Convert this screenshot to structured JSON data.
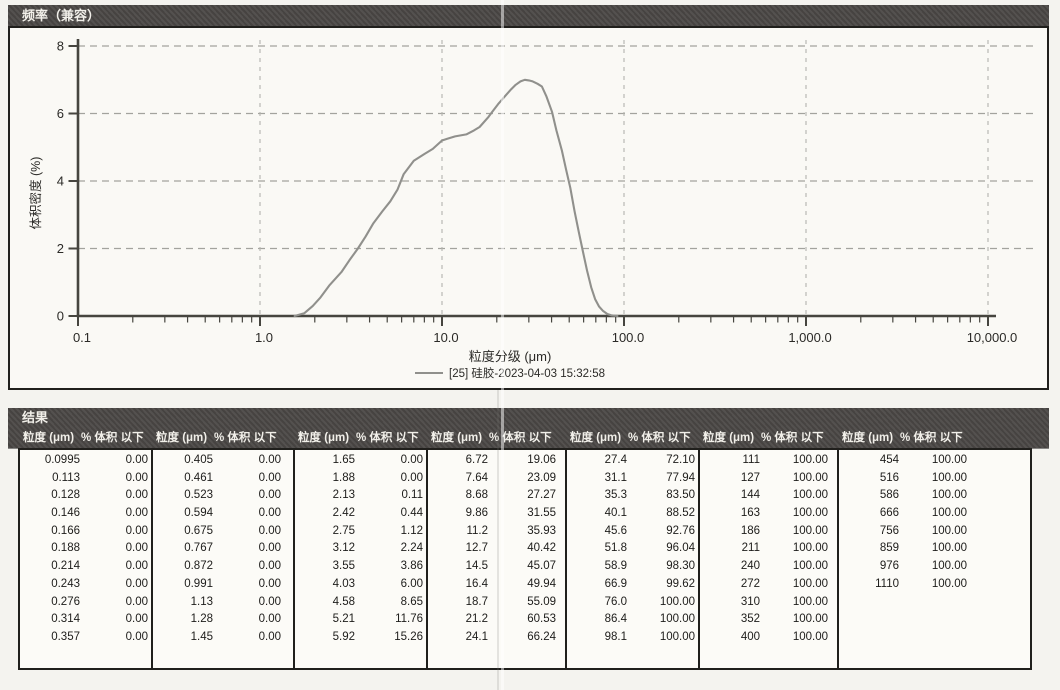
{
  "chart_panel": {
    "title": "频率（兼容）"
  },
  "chart_data": {
    "type": "line",
    "title": "频率（兼容）",
    "xlabel": "粒度分级 (μm)",
    "ylabel": "体积密度 (%)",
    "x_scale": "log",
    "xlim": [
      0.1,
      10000
    ],
    "ylim": [
      0,
      8
    ],
    "x_ticks": [
      "0.1",
      "1.0",
      "10.0",
      "100.0",
      "1,000.0",
      "10,000.0"
    ],
    "y_ticks": [
      "0",
      "2",
      "4",
      "6",
      "8"
    ],
    "grid": true,
    "legend_position": "bottom",
    "series": [
      {
        "name": "[25] 硅胶-2023-04-03 15:32:58",
        "color": "#90908c",
        "x": [
          1.55,
          1.75,
          1.95,
          2.15,
          2.4,
          2.8,
          3.1,
          3.45,
          3.8,
          4.2,
          4.7,
          5.2,
          5.7,
          6.15,
          7.0,
          8.0,
          8.9,
          10.0,
          10.7,
          11.8,
          13.6,
          15.0,
          16.1,
          18.0,
          18.9,
          20.5,
          22.5,
          24.0,
          25.4,
          27.0,
          28.5,
          30.0,
          31.5,
          33.5,
          35.4,
          37.5,
          40.2,
          42.5,
          45.6,
          48.0,
          50.7,
          53.5,
          56.4,
          59.5,
          62.6,
          66.0,
          69.4,
          73.0,
          76.7,
          81.0,
          85.0,
          92.0
        ],
        "y": [
          0,
          0.08,
          0.3,
          0.55,
          0.9,
          1.3,
          1.65,
          2.0,
          2.35,
          2.75,
          3.1,
          3.4,
          3.75,
          4.2,
          4.6,
          4.8,
          4.95,
          5.2,
          5.25,
          5.32,
          5.38,
          5.5,
          5.6,
          5.9,
          6.05,
          6.3,
          6.55,
          6.72,
          6.85,
          6.95,
          7.0,
          6.98,
          6.95,
          6.88,
          6.8,
          6.5,
          6.05,
          5.5,
          4.9,
          4.35,
          3.8,
          3.1,
          2.5,
          1.9,
          1.35,
          0.85,
          0.5,
          0.28,
          0.15,
          0.06,
          0.02,
          0
        ]
      }
    ]
  },
  "results_panel": {
    "title": "结果",
    "column_headers": {
      "size": "粒度 (μm)",
      "cumulative": "% 体积 以下"
    },
    "groups": [
      [
        [
          "0.0995",
          "0.00"
        ],
        [
          "0.113",
          "0.00"
        ],
        [
          "0.128",
          "0.00"
        ],
        [
          "0.146",
          "0.00"
        ],
        [
          "0.166",
          "0.00"
        ],
        [
          "0.188",
          "0.00"
        ],
        [
          "0.214",
          "0.00"
        ],
        [
          "0.243",
          "0.00"
        ],
        [
          "0.276",
          "0.00"
        ],
        [
          "0.314",
          "0.00"
        ],
        [
          "0.357",
          "0.00"
        ]
      ],
      [
        [
          "0.405",
          "0.00"
        ],
        [
          "0.461",
          "0.00"
        ],
        [
          "0.523",
          "0.00"
        ],
        [
          "0.594",
          "0.00"
        ],
        [
          "0.675",
          "0.00"
        ],
        [
          "0.767",
          "0.00"
        ],
        [
          "0.872",
          "0.00"
        ],
        [
          "0.991",
          "0.00"
        ],
        [
          "1.13",
          "0.00"
        ],
        [
          "1.28",
          "0.00"
        ],
        [
          "1.45",
          "0.00"
        ]
      ],
      [
        [
          "1.65",
          "0.00"
        ],
        [
          "1.88",
          "0.00"
        ],
        [
          "2.13",
          "0.11"
        ],
        [
          "2.42",
          "0.44"
        ],
        [
          "2.75",
          "1.12"
        ],
        [
          "3.12",
          "2.24"
        ],
        [
          "3.55",
          "3.86"
        ],
        [
          "4.03",
          "6.00"
        ],
        [
          "4.58",
          "8.65"
        ],
        [
          "5.21",
          "11.76"
        ],
        [
          "5.92",
          "15.26"
        ]
      ],
      [
        [
          "6.72",
          "19.06"
        ],
        [
          "7.64",
          "23.09"
        ],
        [
          "8.68",
          "27.27"
        ],
        [
          "9.86",
          "31.55"
        ],
        [
          "11.2",
          "35.93"
        ],
        [
          "12.7",
          "40.42"
        ],
        [
          "14.5",
          "45.07"
        ],
        [
          "16.4",
          "49.94"
        ],
        [
          "18.7",
          "55.09"
        ],
        [
          "21.2",
          "60.53"
        ],
        [
          "24.1",
          "66.24"
        ]
      ],
      [
        [
          "27.4",
          "72.10"
        ],
        [
          "31.1",
          "77.94"
        ],
        [
          "35.3",
          "83.50"
        ],
        [
          "40.1",
          "88.52"
        ],
        [
          "45.6",
          "92.76"
        ],
        [
          "51.8",
          "96.04"
        ],
        [
          "58.9",
          "98.30"
        ],
        [
          "66.9",
          "99.62"
        ],
        [
          "76.0",
          "100.00"
        ],
        [
          "86.4",
          "100.00"
        ],
        [
          "98.1",
          "100.00"
        ]
      ],
      [
        [
          "111",
          "100.00"
        ],
        [
          "127",
          "100.00"
        ],
        [
          "144",
          "100.00"
        ],
        [
          "163",
          "100.00"
        ],
        [
          "186",
          "100.00"
        ],
        [
          "211",
          "100.00"
        ],
        [
          "240",
          "100.00"
        ],
        [
          "272",
          "100.00"
        ],
        [
          "310",
          "100.00"
        ],
        [
          "352",
          "100.00"
        ],
        [
          "400",
          "100.00"
        ]
      ],
      [
        [
          "454",
          "100.00"
        ],
        [
          "516",
          "100.00"
        ],
        [
          "586",
          "100.00"
        ],
        [
          "666",
          "100.00"
        ],
        [
          "756",
          "100.00"
        ],
        [
          "859",
          "100.00"
        ],
        [
          "976",
          "100.00"
        ],
        [
          "1110",
          "100.00"
        ]
      ]
    ]
  },
  "colors": {
    "header_bar": "#4b4846",
    "curve": "#90908c",
    "grid": "#a3a39e",
    "axis": "#46453f",
    "border": "#201f1c",
    "text": "#2b2a27"
  }
}
